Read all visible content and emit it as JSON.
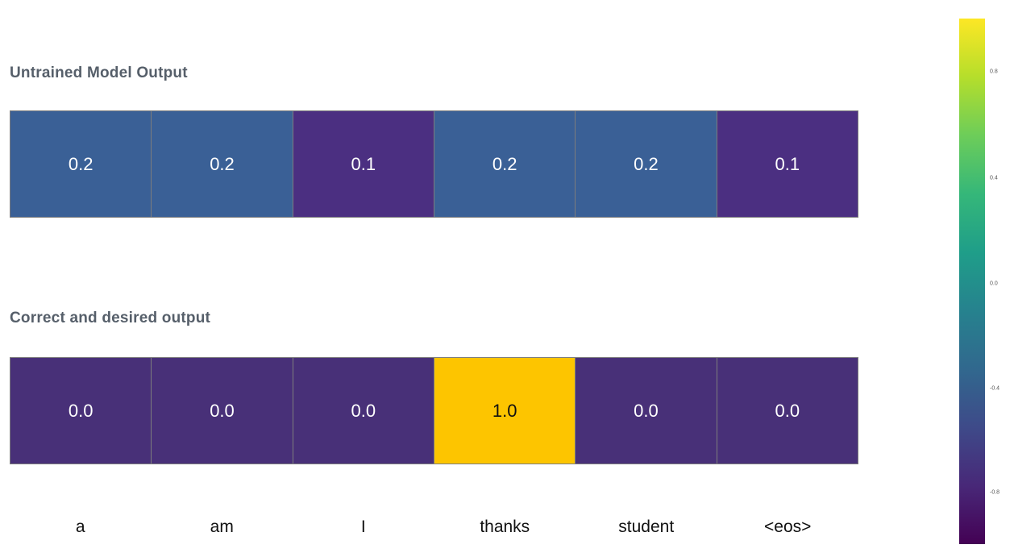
{
  "chart_data": [
    {
      "type": "heatmap",
      "title": "Untrained Model Output",
      "x_labels": [
        "a",
        "am",
        "I",
        "thanks",
        "student",
        "<eos>"
      ],
      "values": [
        [
          0.2,
          0.2,
          0.1,
          0.2,
          0.2,
          0.1
        ]
      ],
      "colorscale": "viridis",
      "zmin": -1.0,
      "zmax": 1.0,
      "colorbar_ticks": [
        0.8,
        0.4,
        0.0,
        -0.4,
        -0.8
      ],
      "legend_position": "right"
    },
    {
      "type": "heatmap",
      "title": "Correct and desired output",
      "x_labels": [
        "a",
        "am",
        "I",
        "thanks",
        "student",
        "<eos>"
      ],
      "values": [
        [
          0.0,
          0.0,
          0.0,
          1.0,
          0.0,
          0.0
        ]
      ],
      "colorscale": "viridis",
      "zmin": -1.0,
      "zmax": 1.0
    }
  ],
  "heatmaps": [
    {
      "title": "Untrained Model Output",
      "cells": [
        {
          "label": "0.2",
          "bg": "#3a6096",
          "text": "#ffffff"
        },
        {
          "label": "0.2",
          "bg": "#3a6096",
          "text": "#ffffff"
        },
        {
          "label": "0.1",
          "bg": "#4b2f81",
          "text": "#ffffff"
        },
        {
          "label": "0.2",
          "bg": "#3a6096",
          "text": "#ffffff"
        },
        {
          "label": "0.2",
          "bg": "#3a6096",
          "text": "#ffffff"
        },
        {
          "label": "0.1",
          "bg": "#4b2f81",
          "text": "#ffffff"
        }
      ]
    },
    {
      "title": "Correct and desired output",
      "cells": [
        {
          "label": "0.0",
          "bg": "#483078",
          "text": "#ffffff"
        },
        {
          "label": "0.0",
          "bg": "#483078",
          "text": "#ffffff"
        },
        {
          "label": "0.0",
          "bg": "#483078",
          "text": "#ffffff"
        },
        {
          "label": "1.0",
          "bg": "#fdc500",
          "text": "#111111"
        },
        {
          "label": "0.0",
          "bg": "#483078",
          "text": "#ffffff"
        },
        {
          "label": "0.0",
          "bg": "#483078",
          "text": "#ffffff"
        }
      ]
    }
  ],
  "tokens": [
    "a",
    "am",
    "I",
    "thanks",
    "student",
    "<eos>"
  ],
  "colorbar": {
    "ticks": [
      {
        "label": "0.8",
        "pos": 10.1
      },
      {
        "label": "0.4",
        "pos": 30.4
      },
      {
        "label": "0.0",
        "pos": 50.5
      },
      {
        "label": "-0.4",
        "pos": 70.4
      },
      {
        "label": "-0.8",
        "pos": 90.2
      }
    ],
    "gradient_colors": [
      "#fde725",
      "#b5de2b",
      "#6dcd59",
      "#35b779",
      "#1f9e89",
      "#26828e",
      "#31688e",
      "#3e4a89",
      "#482878",
      "#440154"
    ]
  }
}
